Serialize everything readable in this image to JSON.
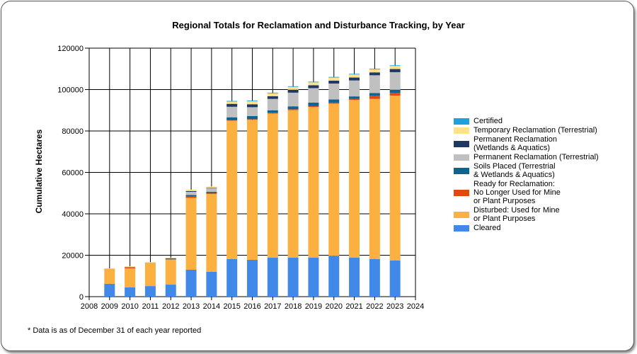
{
  "chart_data": {
    "type": "bar",
    "stacked": true,
    "title": "Regional Totals for Reclamation and Disturbance Tracking, by Year",
    "xlabel": "",
    "ylabel": "Cumulative Hectares",
    "ylim": [
      0,
      120000
    ],
    "yticks": [
      0,
      20000,
      40000,
      60000,
      80000,
      100000,
      120000
    ],
    "ytick_labels": [
      "0",
      "20000",
      "40000",
      "60000",
      "80000",
      "100000",
      "120000"
    ],
    "xlim": [
      2008,
      2024
    ],
    "xtick_labels": [
      "2008",
      "2009",
      "2010",
      "2011",
      "2012",
      "2013",
      "2014",
      "2015",
      "2016",
      "2017",
      "2018",
      "2019",
      "2020",
      "2021",
      "2022",
      "2023",
      "2024"
    ],
    "grid": true,
    "legend_position": "right",
    "categories": [
      "2009",
      "2010",
      "2011",
      "2012",
      "2013",
      "2014",
      "2015",
      "2016",
      "2017",
      "2018",
      "2019",
      "2020",
      "2021",
      "2022",
      "2023"
    ],
    "series": [
      {
        "name": "Cleared",
        "color": "#4189e8",
        "values": [
          6200,
          4500,
          5100,
          5800,
          13000,
          12000,
          18200,
          17800,
          18800,
          18800,
          18800,
          19800,
          18800,
          18200,
          17500
        ]
      },
      {
        "name": "Disturbed: Used for Mine or Plant Purposes",
        "color": "#fbb040",
        "values": [
          7200,
          9200,
          11300,
          12200,
          34700,
          37600,
          66800,
          67600,
          69600,
          71300,
          72800,
          73400,
          76200,
          77300,
          79600
        ]
      },
      {
        "name": "Ready for Reclamation: No Longer Used for Mine or Plant Purposes",
        "color": "#e04a10",
        "values": [
          0,
          600,
          0,
          0,
          700,
          500,
          300,
          300,
          400,
          400,
          400,
          500,
          500,
          1500,
          1300
        ]
      },
      {
        "name": "Soils Placed (Terrestrial & Wetlands & Aquatics)",
        "color": "#0e6391",
        "values": [
          0,
          0,
          0,
          500,
          700,
          500,
          1300,
          1500,
          1200,
          1400,
          1700,
          1500,
          1200,
          1300,
          1500
        ]
      },
      {
        "name": "Permanent Reclamation (Terrestrial)",
        "color": "#c0c0c0",
        "values": [
          100,
          100,
          100,
          200,
          1500,
          1700,
          5100,
          4300,
          5500,
          6600,
          7000,
          7700,
          7700,
          8600,
          8500
        ]
      },
      {
        "name": "Permanent Reclamation (Wetlands & Aquatics)",
        "color": "#1f3864",
        "values": [
          0,
          0,
          0,
          0,
          400,
          200,
          1400,
          1400,
          1300,
          1400,
          1400,
          1400,
          1400,
          1400,
          1500
        ]
      },
      {
        "name": "Temporary Reclamation (Terrestrial)",
        "color": "#ffe18a",
        "values": [
          200,
          300,
          200,
          100,
          700,
          700,
          1100,
          1500,
          1400,
          1400,
          1400,
          1500,
          1500,
          1500,
          1500
        ]
      },
      {
        "name": "Certified",
        "color": "#1ea0dc",
        "values": [
          0,
          0,
          0,
          0,
          0,
          0,
          300,
          300,
          300,
          300,
          300,
          300,
          300,
          300,
          300
        ]
      }
    ]
  },
  "legend": {
    "items": [
      {
        "label": "Certified",
        "color": "#1ea0dc"
      },
      {
        "label": "Temporary Reclamation (Terrestrial)",
        "color": "#ffe18a"
      },
      {
        "label": "Permanent Reclamation (Wetlands & Aquatics)",
        "color": "#1f3864"
      },
      {
        "label": "Permanent Reclamation (Terrestrial)",
        "color": "#c0c0c0"
      },
      {
        "label": "Soils Placed (Terrestrial & Wetlands & Aquatics)",
        "color": "#0e6391"
      },
      {
        "label": "Ready for Reclamation: No Longer Used for Mine or Plant Purposes",
        "color": "#e04a10"
      },
      {
        "label": "Disturbed: Used for Mine or Plant Purposes",
        "color": "#fbb040"
      },
      {
        "label": "Cleared",
        "color": "#4189e8"
      }
    ]
  },
  "footnote": "* Data is as of December 31 of each year reported"
}
